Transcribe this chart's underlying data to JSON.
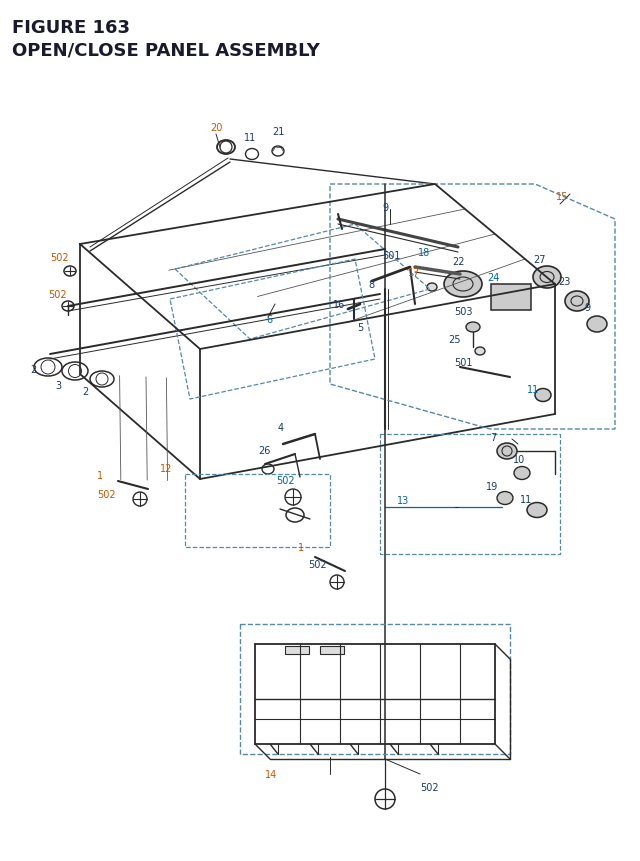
{
  "title_line1": "FIGURE 163",
  "title_line2": "OPEN/CLOSE PANEL ASSEMBLY",
  "title_color": "#1a1a2e",
  "bg_color": "#ffffff",
  "line_color": "#2a2a2a",
  "part_blue": "#1a3a6e",
  "part_orange": "#cc5500",
  "part_cyan": "#0066aa",
  "dash_color": "#5588aa"
}
